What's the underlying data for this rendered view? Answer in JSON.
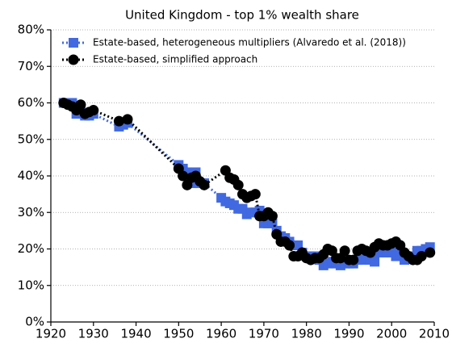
{
  "chart_data": {
    "type": "line",
    "title": "United Kingdom - top 1% wealth share",
    "xlim": [
      1920,
      2010
    ],
    "xticks": [
      1920,
      1930,
      1940,
      1950,
      1960,
      1970,
      1980,
      1990,
      2000,
      2010
    ],
    "ylim": [
      0,
      80
    ],
    "yticks": [
      {
        "value": 0,
        "label": "0%"
      },
      {
        "value": 10,
        "label": "10%"
      },
      {
        "value": 20,
        "label": "20%"
      },
      {
        "value": 30,
        "label": "30%"
      },
      {
        "value": 40,
        "label": "40%"
      },
      {
        "value": 50,
        "label": "50%"
      },
      {
        "value": 60,
        "label": "60%"
      },
      {
        "value": 70,
        "label": "70%"
      },
      {
        "value": 80,
        "label": "80%"
      }
    ],
    "grid": true,
    "legend": "upper-left",
    "series": [
      {
        "name": "Estate-based, heterogeneous multipliers (Alvaredo et al. (2018))",
        "color": "#4169e1",
        "marker": "square",
        "x": [
          1923,
          1924,
          1925,
          1926,
          1927,
          1928,
          1929,
          1930,
          1936,
          1937,
          1938,
          1950,
          1951,
          1952,
          1953,
          1954,
          1955,
          1956,
          1960,
          1961,
          1962,
          1963,
          1964,
          1965,
          1966,
          1967,
          1968,
          1969,
          1970,
          1971,
          1972,
          1973,
          1974,
          1975,
          1976,
          1977,
          1978,
          1979,
          1980,
          1981,
          1982,
          1983,
          1984,
          1985,
          1986,
          1987,
          1988,
          1989,
          1990,
          1991,
          1992,
          1993,
          1994,
          1995,
          1996,
          1997,
          1998,
          1999,
          2000,
          2001,
          2002,
          2003,
          2004,
          2005,
          2006,
          2007,
          2008,
          2009
        ],
        "values": [
          60,
          60,
          60,
          57,
          58,
          56.5,
          56.5,
          57,
          53.5,
          54,
          54.5,
          43,
          42,
          41,
          38,
          41,
          38,
          38,
          34,
          33,
          32.5,
          32,
          31,
          31,
          29.5,
          30,
          30,
          30.5,
          27,
          27,
          27,
          25,
          23.5,
          23,
          22,
          21,
          21,
          19,
          18,
          18,
          18,
          17,
          15.5,
          16,
          16.5,
          16,
          15.5,
          16,
          16,
          16,
          17,
          17,
          17.5,
          17,
          16.5,
          19,
          19,
          19,
          19,
          18,
          18.5,
          17,
          17.5,
          18,
          19.5,
          19.5,
          20,
          20.5
        ]
      },
      {
        "name": "Estate-based, simplified approach",
        "color": "#000000",
        "marker": "circle",
        "x": [
          1923,
          1924,
          1925,
          1926,
          1927,
          1928,
          1929,
          1930,
          1936,
          1938,
          1950,
          1951,
          1952,
          1953,
          1954,
          1955,
          1956,
          1961,
          1962,
          1963,
          1964,
          1965,
          1966,
          1967,
          1968,
          1969,
          1970,
          1971,
          1972,
          1973,
          1974,
          1975,
          1976,
          1977,
          1978,
          1979,
          1980,
          1981,
          1982,
          1983,
          1984,
          1985,
          1986,
          1987,
          1988,
          1989,
          1990,
          1991,
          1992,
          1993,
          1994,
          1995,
          1996,
          1997,
          1998,
          1999,
          2000,
          2001,
          2002,
          2003,
          2004,
          2005,
          2006,
          2007,
          2009
        ],
        "values": [
          60,
          59.5,
          59,
          58,
          59.5,
          57,
          57.5,
          58,
          55,
          55.5,
          42,
          40,
          37.5,
          39.5,
          40,
          38.5,
          37.5,
          41.5,
          39.5,
          39,
          37.5,
          35,
          34,
          34.5,
          35,
          29,
          29,
          30,
          29,
          24,
          22,
          22,
          21,
          18,
          18,
          19,
          17.5,
          17,
          17.5,
          17.5,
          18.5,
          20,
          19.5,
          17.5,
          17.5,
          19.5,
          17,
          17,
          19.5,
          20,
          19.5,
          19,
          20.5,
          21.5,
          21,
          21,
          21.5,
          22,
          21,
          19,
          18,
          17,
          17,
          18,
          19
        ]
      }
    ]
  }
}
